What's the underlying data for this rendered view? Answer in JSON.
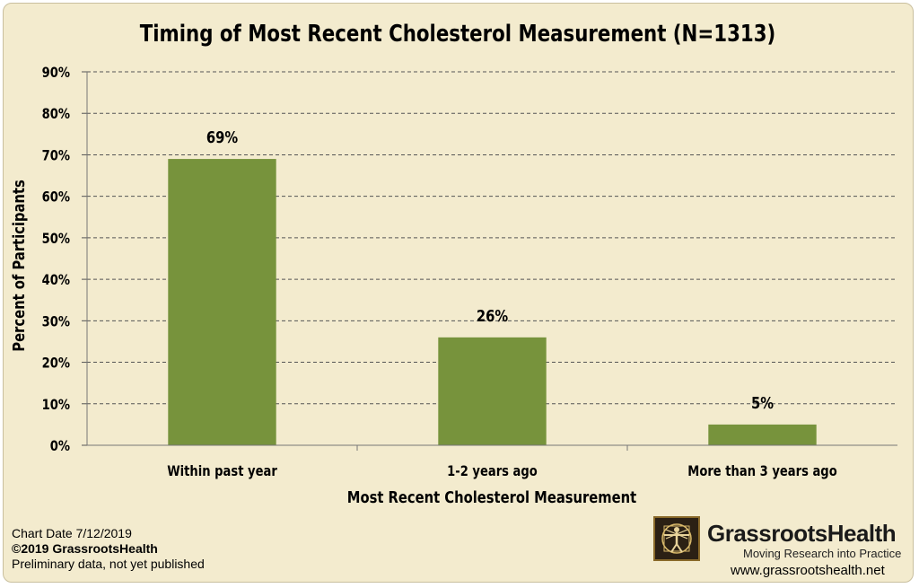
{
  "chart_data": {
    "type": "bar",
    "title": "Timing of Most Recent Cholesterol Measurement (N=1313)",
    "xlabel": "Most Recent Cholesterol Measurement",
    "ylabel": "Percent of Participants",
    "categories": [
      "Within past year",
      "1-2 years ago",
      "More than 3 years ago"
    ],
    "values": [
      69,
      26,
      5
    ],
    "data_labels": [
      "69%",
      "26%",
      "5%"
    ],
    "yticks": [
      "0%",
      "10%",
      "20%",
      "30%",
      "40%",
      "50%",
      "60%",
      "70%",
      "80%",
      "90%"
    ],
    "ylim": [
      0,
      90
    ],
    "grid": true,
    "legend": "none",
    "bar_color": "#77933c",
    "background": "#f3ebce"
  },
  "footer": {
    "chart_date": "Chart Date 7/12/2019",
    "copyright": "©2019 GrassrootsHealth",
    "note": "Preliminary data, not yet published"
  },
  "brand": {
    "name": "GrassrootsHealth",
    "tagline": "Moving Research into Practice",
    "url": "www.grassrootshealth.net",
    "logo_icon": "vitruvian-man-icon"
  }
}
